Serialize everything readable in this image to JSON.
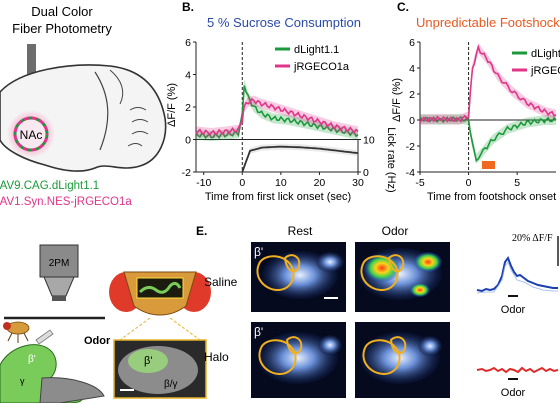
{
  "panel_a": {
    "title_line1": "Dual Color",
    "title_line2": "Fiber Photometry",
    "region": "NAc",
    "virus1": "AAV9.CAG.dLight1.1",
    "virus2": "AAV1.Syn.NES-jRGECO1a",
    "colors": {
      "dlight": "#1a9a3a",
      "jrgeco": "#e0358a"
    }
  },
  "panel_b": {
    "letter": "B.",
    "title": "5 % Sucrose Consumption",
    "ylabel": "ΔF/F (%)",
    "xlabel": "Time from first lick onset (sec)",
    "right_ylabel": "Lick rate (Hz)",
    "legend": [
      "dLight1.1",
      "jRGECO1a"
    ]
  },
  "panel_c": {
    "letter": "C.",
    "title": "Unpredictable Footshock",
    "ylabel": "ΔF/F (%)",
    "xlabel": "Time from footshock onset",
    "legend": [
      "dLight",
      "jRGEC"
    ]
  },
  "panel_d": {
    "scope_label": "2PM",
    "odor_label": "Odor",
    "beta_prime": "β'",
    "gamma": "γ",
    "beta_gamma": "β/γ"
  },
  "panel_e": {
    "letter": "E.",
    "col_rest": "Rest",
    "col_odor": "Odor",
    "row_saline": "Saline",
    "row_halo": "Halo",
    "scale_label": "20% ΔF/F",
    "odor_label_top": "Odor",
    "odor_label_bottom": "Odor",
    "beta_prime": "β'"
  },
  "chart_data": [
    {
      "type": "line",
      "panel": "B",
      "title": "5 % Sucrose Consumption",
      "xlabel": "Time from first lick onset (sec)",
      "ylabel": "ΔF/F (%)",
      "xlim": [
        -12,
        30
      ],
      "ylim": [
        -2,
        6
      ],
      "x_ticks": [
        -10,
        0,
        10,
        20,
        30
      ],
      "y_ticks": [
        -2,
        0,
        2,
        4,
        6
      ],
      "right_axis": {
        "label": "Lick rate (Hz)",
        "ticks": [
          0,
          10
        ]
      },
      "series": [
        {
          "name": "dLight1.1",
          "color": "#1a9a3a",
          "x": [
            -12,
            -8,
            -4,
            -1,
            0,
            0.5,
            1.5,
            3,
            5,
            8,
            12,
            16,
            20,
            24,
            28,
            30
          ],
          "y": [
            0.3,
            0.2,
            0.3,
            0.4,
            1.5,
            3.4,
            2.6,
            2.0,
            1.6,
            1.3,
            1.2,
            1.0,
            0.8,
            0.6,
            0.4,
            0.3
          ]
        },
        {
          "name": "jRGECO1a",
          "color": "#e0358a",
          "x": [
            -12,
            -8,
            -4,
            -1,
            0,
            0.5,
            1.5,
            3,
            5,
            8,
            12,
            16,
            20,
            24,
            28,
            30
          ],
          "y": [
            0.5,
            0.4,
            0.5,
            0.6,
            1.2,
            2.0,
            2.3,
            2.4,
            2.2,
            2.0,
            1.7,
            1.4,
            1.1,
            0.8,
            0.6,
            0.5
          ]
        },
        {
          "name": "",
          "color": "#333333",
          "axis": "right",
          "x": [
            0,
            2,
            5,
            10,
            15,
            20,
            25,
            30
          ],
          "y": [
            0,
            6.5,
            7.5,
            7.8,
            7.6,
            7.2,
            6.5,
            5.8
          ]
        }
      ]
    },
    {
      "type": "line",
      "panel": "C",
      "title": "Unpredictable Footshock",
      "xlabel": "Time from footshock onset",
      "ylabel": "ΔF/F (%)",
      "xlim": [
        -5,
        9
      ],
      "ylim": [
        -4,
        6
      ],
      "x_ticks": [
        -5,
        0,
        5
      ],
      "y_ticks": [
        -4,
        -2,
        0,
        2,
        4,
        6
      ],
      "series": [
        {
          "name": "dLight",
          "color": "#1a9a3a",
          "x": [
            -5,
            -3,
            -1,
            0,
            0.3,
            0.8,
            1.5,
            2.5,
            4,
            6,
            8,
            9
          ],
          "y": [
            0.1,
            0.0,
            0.1,
            0.0,
            -1.5,
            -3.0,
            -2.4,
            -1.5,
            -0.7,
            -0.2,
            0.0,
            0.0
          ]
        },
        {
          "name": "jRGEC",
          "color": "#e0358a",
          "x": [
            -5,
            -3,
            -1,
            0,
            0.4,
            1.0,
            2.0,
            3.0,
            4.5,
            6,
            8,
            9
          ],
          "y": [
            0.0,
            0.1,
            0.0,
            0.3,
            4.0,
            5.5,
            4.6,
            3.4,
            2.2,
            1.3,
            0.6,
            0.4
          ]
        }
      ]
    }
  ]
}
